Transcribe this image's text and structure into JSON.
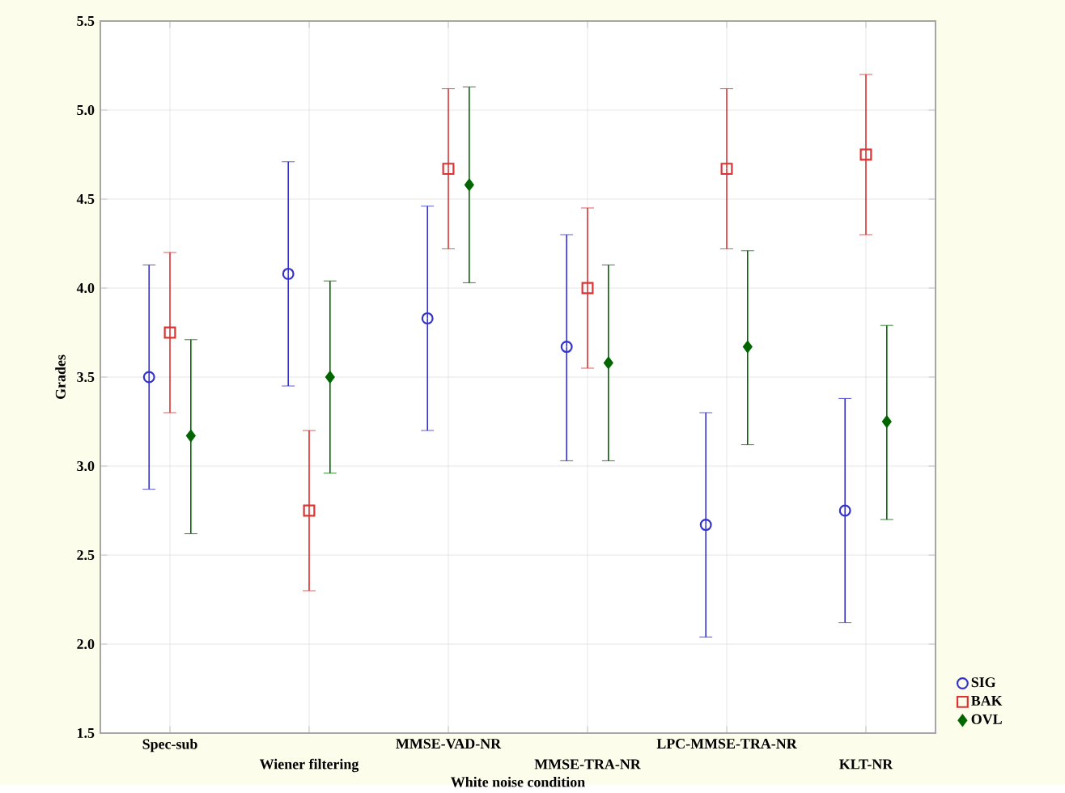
{
  "chart_data": {
    "type": "scatter",
    "xlabel": "White noise condition",
    "ylabel": "Grades",
    "categories": [
      "Spec-sub",
      "Wiener filtering",
      "MMSE-VAD-NR",
      "MMSE-TRA-NR",
      "LPC-MMSE-TRA-NR",
      "KLT-NR"
    ],
    "series": [
      {
        "name": "SIG",
        "color": "#3333cc",
        "marker": "circle",
        "values": [
          3.5,
          4.08,
          3.83,
          3.67,
          2.67,
          2.75
        ],
        "errors": [
          [
            2.87,
            4.13
          ],
          [
            3.45,
            4.71
          ],
          [
            3.2,
            4.46
          ],
          [
            3.03,
            4.3
          ],
          [
            2.04,
            3.3
          ],
          [
            2.12,
            3.38
          ]
        ]
      },
      {
        "name": "BAK",
        "color": "#dd3333",
        "marker": "square",
        "values": [
          3.75,
          2.75,
          4.67,
          4.0,
          4.67,
          4.75
        ],
        "errors": [
          [
            3.3,
            4.2
          ],
          [
            2.3,
            3.2
          ],
          [
            4.22,
            5.12
          ],
          [
            3.55,
            4.45
          ],
          [
            4.22,
            5.12
          ],
          [
            4.3,
            5.2
          ]
        ]
      },
      {
        "name": "OVL",
        "color": "#006600",
        "marker": "diamond",
        "values": [
          3.17,
          3.5,
          4.58,
          3.58,
          3.67,
          3.25
        ],
        "errors": [
          [
            2.62,
            3.71
          ],
          [
            2.96,
            4.04
          ],
          [
            4.03,
            5.13
          ],
          [
            3.03,
            4.13
          ],
          [
            3.12,
            4.21
          ],
          [
            2.7,
            3.79
          ]
        ]
      }
    ],
    "ylim": [
      1.5,
      5.5
    ],
    "yticks": [
      {
        "value": 1.5,
        "label": "1.5"
      },
      {
        "value": 2.0,
        "label": "2.0"
      },
      {
        "value": 2.5,
        "label": "2.5"
      },
      {
        "value": 3.0,
        "label": "3.0"
      },
      {
        "value": 3.5,
        "label": "3.5"
      },
      {
        "value": 4.0,
        "label": "4.0"
      },
      {
        "value": 4.5,
        "label": "4.5"
      },
      {
        "value": 5.0,
        "label": "5.0"
      },
      {
        "value": 5.5,
        "label": "5.5"
      }
    ],
    "grid": true,
    "legend": "bottom right"
  }
}
